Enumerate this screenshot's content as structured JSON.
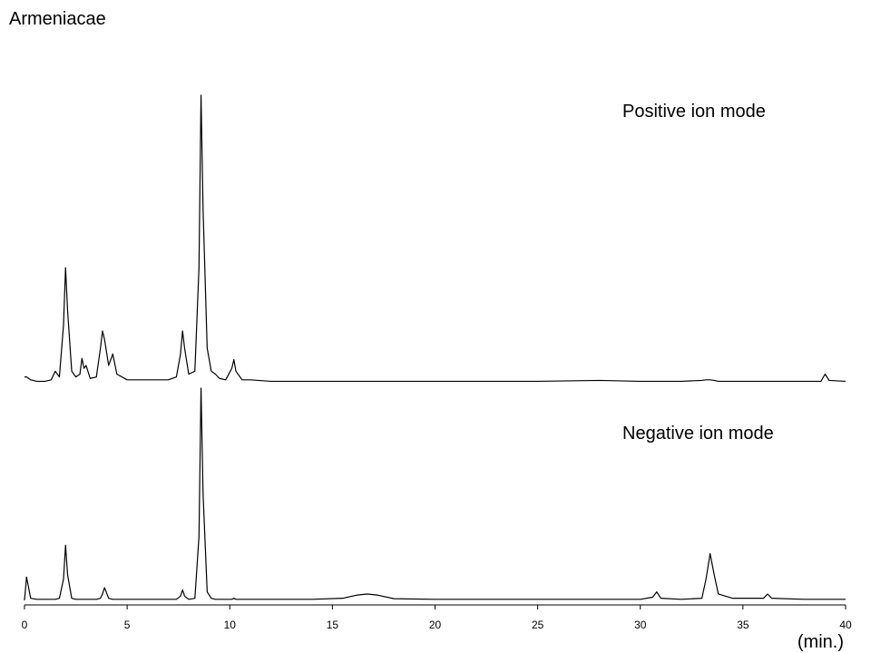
{
  "chart_data": {
    "type": "line",
    "title": "Armeniacae",
    "xlabel": "(min.)",
    "xlim": [
      0,
      40
    ],
    "xticks": [
      0,
      5,
      10,
      15,
      20,
      25,
      30,
      35,
      40
    ],
    "ylim": [
      0,
      100
    ],
    "x": [
      0,
      0.1,
      0.3,
      0.6,
      1,
      1.3,
      1.5,
      1.7,
      1.9,
      2.0,
      2.1,
      2.3,
      2.5,
      2.7,
      2.8,
      2.9,
      3.0,
      3.2,
      3.5,
      3.7,
      3.8,
      3.9,
      4.1,
      4.3,
      4.5,
      5,
      6,
      7,
      7.4,
      7.6,
      7.7,
      7.8,
      8,
      8.3,
      8.5,
      8.6,
      8.7,
      8.9,
      9.1,
      9.3,
      9.5,
      9.8,
      10.1,
      10.2,
      10.3,
      10.6,
      11,
      12,
      14,
      15.5,
      16.2,
      16.7,
      17.2,
      18,
      20,
      25,
      28,
      30,
      30.6,
      30.8,
      31,
      32,
      33,
      33.2,
      33.4,
      33.6,
      33.8,
      34.5,
      36,
      36.2,
      36.4,
      38,
      38.8,
      39,
      39.2,
      40
    ],
    "series": [
      {
        "name": "Positive ion mode",
        "color": "#000000",
        "values": [
          2,
          2,
          1,
          0.5,
          0.5,
          1,
          4,
          2,
          20,
          40,
          25,
          4,
          2,
          3,
          8.5,
          5,
          6,
          1.5,
          2,
          12,
          18,
          15,
          6,
          10,
          3,
          1,
          1,
          1,
          2,
          10,
          18,
          12,
          3,
          4,
          40,
          100,
          60,
          12,
          4,
          3,
          1.5,
          1,
          5,
          8,
          4,
          1,
          1,
          0.5,
          0.5,
          0.5,
          0.5,
          0.5,
          0.5,
          0.5,
          0.5,
          0.5,
          0.8,
          0.5,
          0.5,
          0.5,
          0.5,
          0.5,
          0.8,
          1,
          1,
          0.8,
          0.5,
          0.5,
          0.5,
          0.5,
          0.5,
          0.5,
          0.5,
          3,
          0.8,
          0.5
        ]
      },
      {
        "name": "Negative ion mode",
        "color": "#000000",
        "values": [
          0,
          11,
          1,
          0.5,
          0.5,
          0.5,
          0.5,
          1,
          10,
          26,
          12,
          1,
          0.5,
          0.5,
          0.5,
          0.5,
          0.5,
          0.5,
          0.5,
          1,
          3,
          6,
          1,
          0.5,
          0.5,
          0.5,
          0.5,
          0.5,
          0.5,
          2,
          5,
          2,
          0.5,
          1,
          30,
          100,
          50,
          4,
          1,
          0.5,
          0.5,
          0.5,
          0.5,
          1,
          0.5,
          0.5,
          0.5,
          0.5,
          0.5,
          1,
          2.5,
          3,
          2.5,
          0.8,
          0.5,
          0.5,
          0.5,
          0.5,
          1.5,
          4,
          1,
          0.5,
          1,
          10,
          22,
          12,
          3,
          1,
          1,
          3,
          1,
          0.5,
          0.5,
          0.5,
          0.5,
          0.5
        ]
      }
    ]
  }
}
